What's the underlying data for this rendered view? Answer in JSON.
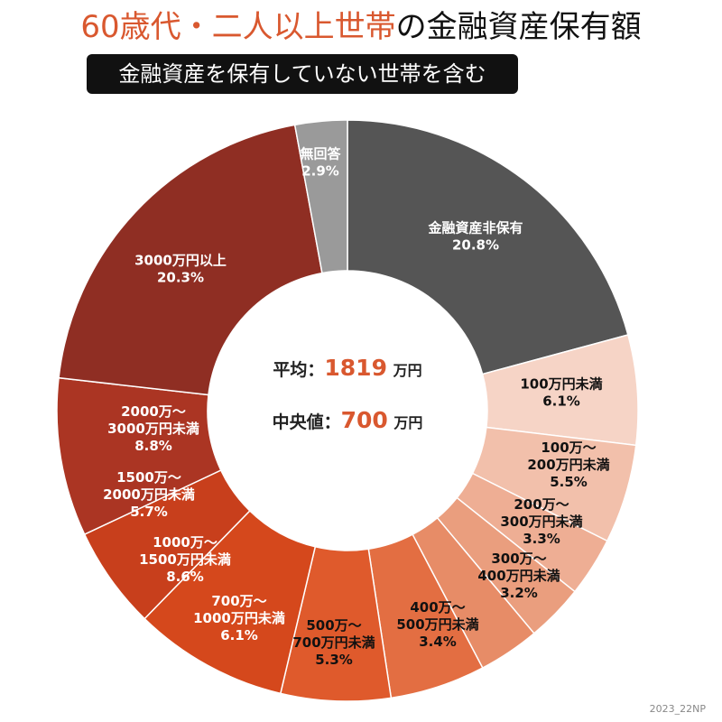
{
  "title": {
    "accent": "60歳代・二人以上世帯",
    "rest": "の金融資産保有額"
  },
  "subtitle": "金融資産を保有していない世帯を含む",
  "center": {
    "mean_label": "平均：",
    "mean_value": "1819",
    "mean_unit": "万円",
    "median_label": "中央値：",
    "median_value": "700",
    "median_unit": "万円"
  },
  "footer": "2023_22NP",
  "chart_data": {
    "type": "pie",
    "donut": true,
    "start": "12 o'clock, clockwise",
    "slices": [
      {
        "label": [
          "金融資産非保有"
        ],
        "value": 20.8,
        "pct": "20.8%",
        "color": "#555555",
        "text_color": "#ffffff"
      },
      {
        "label": [
          "100万円未満"
        ],
        "value": 6.1,
        "pct": "6.1%",
        "color": "#f6d4c6",
        "text_color": "#111111"
      },
      {
        "label": [
          "100万～",
          "200万円未満"
        ],
        "value": 5.5,
        "pct": "5.5%",
        "color": "#f2c0ab",
        "text_color": "#111111"
      },
      {
        "label": [
          "200万～",
          "300万円未満"
        ],
        "value": 3.3,
        "pct": "3.3%",
        "color": "#eeae94",
        "text_color": "#111111"
      },
      {
        "label": [
          "300万～",
          "400万円未満"
        ],
        "value": 3.2,
        "pct": "3.2%",
        "color": "#ea9e7e",
        "text_color": "#111111"
      },
      {
        "label": [
          "400万～",
          "500万円未満"
        ],
        "value": 3.4,
        "pct": "3.4%",
        "color": "#e78c67",
        "text_color": "#111111"
      },
      {
        "label": [
          "500万～",
          "700万円未満"
        ],
        "value": 5.3,
        "pct": "5.3%",
        "color": "#e36e42",
        "text_color": "#111111"
      },
      {
        "label": [
          "700万～",
          "1000万円未満"
        ],
        "value": 6.1,
        "pct": "6.1%",
        "color": "#df5a2c",
        "text_color": "#ffffff"
      },
      {
        "label": [
          "1000万～",
          "1500万円未満"
        ],
        "value": 8.6,
        "pct": "8.6%",
        "color": "#d5481c",
        "text_color": "#ffffff"
      },
      {
        "label": [
          "1500万～",
          "2000万円未満"
        ],
        "value": 5.7,
        "pct": "5.7%",
        "color": "#c83f1c",
        "text_color": "#ffffff"
      },
      {
        "label": [
          "2000万～",
          "3000万円未満"
        ],
        "value": 8.8,
        "pct": "8.8%",
        "color": "#ab3523",
        "text_color": "#ffffff"
      },
      {
        "label": [
          "3000万円以上"
        ],
        "value": 20.3,
        "pct": "20.3%",
        "color": "#8f2e23",
        "text_color": "#ffffff"
      },
      {
        "label": [
          "無回答"
        ],
        "value": 2.9,
        "pct": "2.9%",
        "color": "#9a9a9a",
        "text_color": "#ffffff"
      }
    ]
  }
}
